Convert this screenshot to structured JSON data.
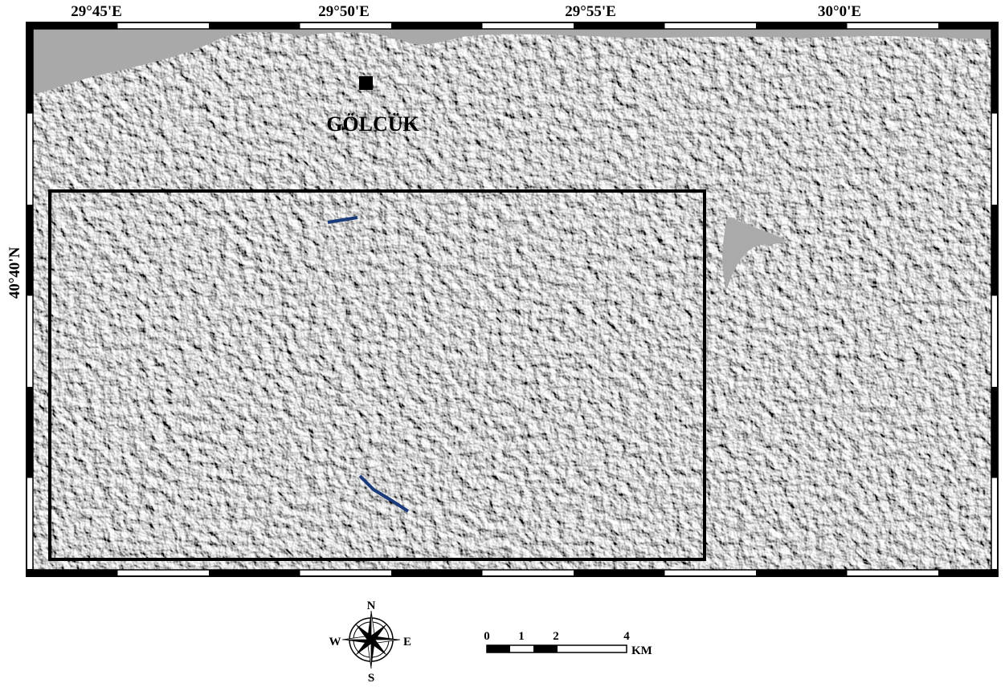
{
  "map": {
    "longitude_labels": [
      "29°45'E",
      "29°50'E",
      "29°55'E",
      "30°0'E"
    ],
    "latitude_labels": [
      "40°40'N"
    ],
    "place_labels": [
      "GÖLCÜK"
    ]
  },
  "compass": {
    "north": "N",
    "south": "S",
    "east": "E",
    "west": "W"
  },
  "scale_bar": {
    "labels": [
      "0",
      "1",
      "2",
      "4"
    ],
    "unit": "KM"
  }
}
